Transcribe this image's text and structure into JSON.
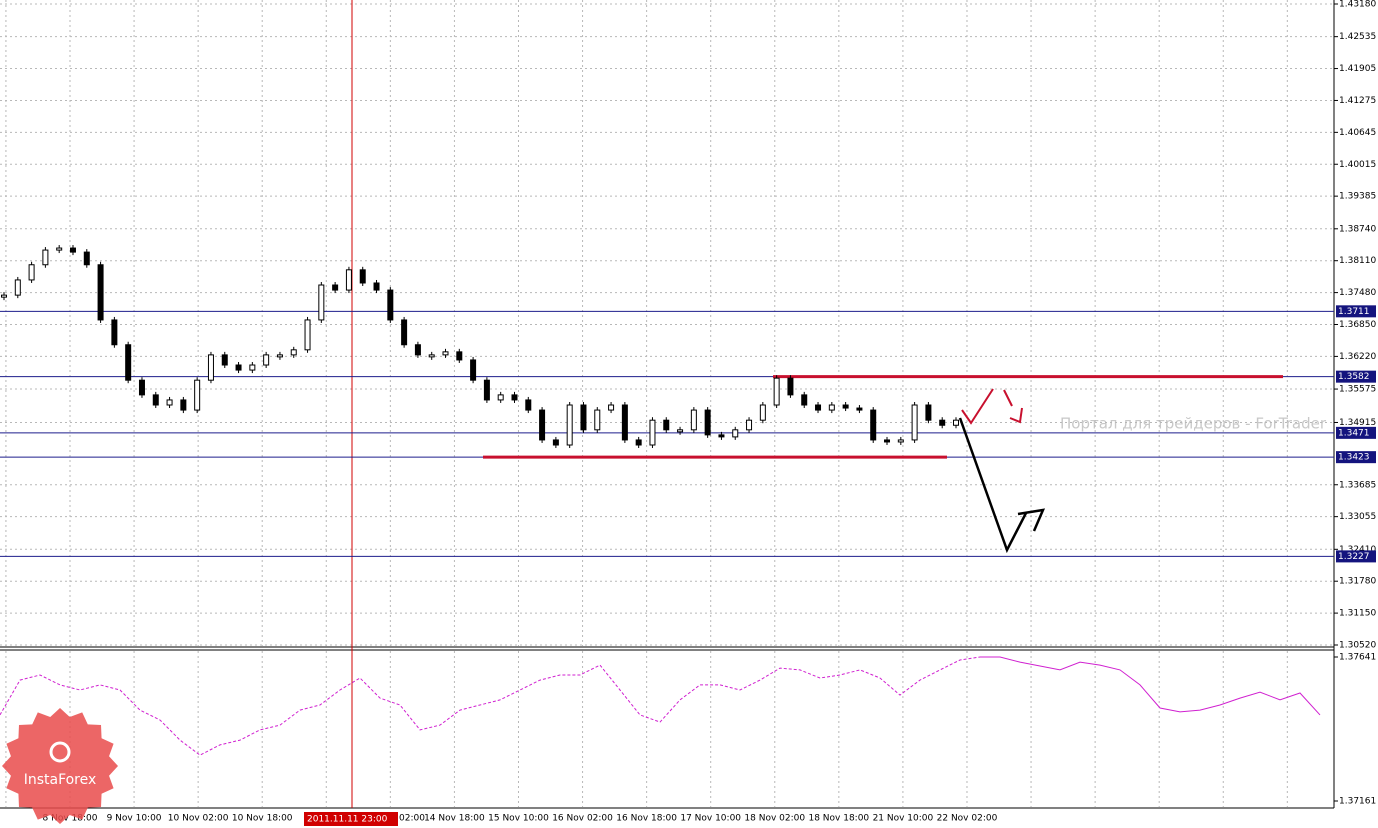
{
  "chart_data": {
    "type": "candlestick",
    "categories": [
      "8 Nov 18:00",
      "9 Nov 10:00",
      "10 Nov 02:00",
      "10 Nov 18:00",
      null,
      "02:00",
      "14 Nov 18:00",
      "15 Nov 10:00",
      "16 Nov 02:00",
      "16 Nov 18:00",
      "17 Nov 10:00",
      "18 Nov 02:00",
      "18 Nov 18:00",
      "21 Nov 10:00",
      "22 Nov 02:00"
    ],
    "close": [
      1.3743,
      1.3773,
      1.3803,
      1.3832,
      1.3836,
      1.3828,
      1.3803,
      1.3694,
      1.3645,
      1.3575,
      1.3546,
      1.3526,
      1.3536,
      1.3516,
      1.3575,
      1.3625,
      1.3605,
      1.3595,
      1.3605,
      1.3625,
      1.3625,
      1.3635,
      1.3694,
      1.3763,
      1.3753,
      1.3793,
      1.3767,
      1.3753,
      1.3694,
      1.3645,
      1.3625,
      1.3625,
      1.3631,
      1.3615,
      1.3575,
      1.3536,
      1.3546,
      1.3536,
      1.3516,
      1.3457,
      1.3447,
      1.3526,
      1.3477,
      1.3516,
      1.3526,
      1.3457,
      1.3447,
      1.3496,
      1.3477,
      1.3477,
      1.3516,
      1.3467,
      1.3463,
      1.3477,
      1.3496,
      1.3526,
      1.3579,
      1.3546,
      1.3526,
      1.3516,
      1.3526,
      1.352,
      1.3516,
      1.3457,
      1.3453,
      1.3457,
      1.3526,
      1.3496,
      1.3486,
      1.3496
    ],
    "ylim": [
      1.3052,
      1.4318
    ],
    "yticks": [
      {
        "value": 1.4318,
        "label": "1.43180"
      },
      1.42535,
      1.41905,
      1.41275,
      1.40645,
      1.40015,
      1.39385,
      {
        "value": 1.3874,
        "label": "1.38740"
      },
      {
        "value": 1.3811,
        "label": "1.38110"
      },
      {
        "value": 1.3748,
        "label": "1.37480"
      },
      {
        "value": 1.3685,
        "label": "1.36850"
      },
      {
        "value": 1.3622,
        "label": "1.36220"
      },
      1.35575,
      1.34915,
      1.33685,
      1.33055,
      {
        "value": 1.3241,
        "label": "1.32410"
      },
      {
        "value": 1.3178,
        "label": "1.31780"
      },
      {
        "value": 1.3115,
        "label": "1.31150"
      },
      {
        "value": 1.3052,
        "label": "1.30520"
      }
    ],
    "grid": true,
    "levels": [
      1.3711,
      1.3582,
      1.3471,
      1.3423,
      1.3227
    ],
    "cursor_label": "2011.11.11 23:00",
    "watermark": "Портал для трейдеров - ForTrader",
    "logo": "InstaForex",
    "indicator": {
      "ylim": [
        1.37161,
        1.37641
      ],
      "yticks": [
        1.37641,
        1.37161
      ],
      "values": [
        1.37448,
        1.37564,
        1.37581,
        1.37548,
        1.37531,
        1.37548,
        1.37531,
        1.37464,
        1.37431,
        1.37364,
        1.37314,
        1.37348,
        1.37364,
        1.37398,
        1.37414,
        1.37464,
        1.37481,
        1.37531,
        1.37571,
        1.37504,
        1.37481,
        1.37398,
        1.37414,
        1.37464,
        1.37481,
        1.37498,
        1.37531,
        1.37564,
        1.37581,
        1.37581,
        1.37614,
        1.37531,
        1.37448,
        1.37424,
        1.37498,
        1.37548,
        1.37548,
        1.37531,
        1.37564,
        1.37604,
        1.37598,
        1.37571,
        1.37581,
        1.37598,
        1.37571,
        1.37514,
        1.37564,
        1.37598,
        1.37631,
        1.37641,
        1.37641,
        1.37624,
        1.37611,
        1.37598,
        1.37624,
        1.37614,
        1.37598,
        1.37548,
        1.37471,
        1.37458,
        1.37464,
        1.37481,
        1.37504,
        1.37524,
        1.37498,
        1.37521,
        1.37448
      ],
      "color": "#d020d0"
    }
  }
}
